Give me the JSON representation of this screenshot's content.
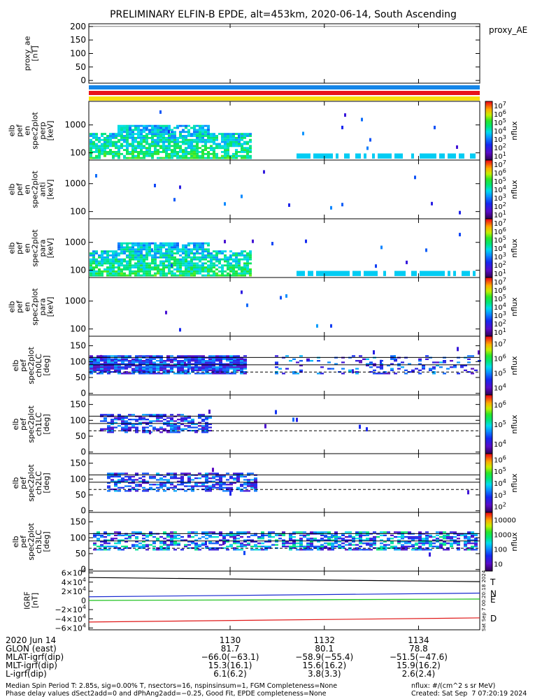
{
  "title": "PRELIMINARY ELFIN-B EPDE, alt=453km, 2020-06-14, South Ascending",
  "stamp": "Sat Sep  7 00:20:18 2024",
  "colors": {
    "bar_blue": "#1585e8",
    "bar_red": "#e8141b",
    "bar_yellow": "#f8e010",
    "comp_T": "#000000",
    "comp_N": "#1a2bd0",
    "comp_E": "#18c018",
    "comp_D": "#e01818"
  },
  "chart_data": [
    {
      "type": "line",
      "id": "proxy_ae",
      "ylabel": [
        "proxy_ae",
        "[nT]"
      ],
      "side_label": "proxy_AE",
      "ylim": [
        -10,
        210
      ],
      "yticks": [
        0,
        50,
        100,
        150,
        200
      ],
      "series": []
    },
    {
      "type": "heatmap",
      "id": "pef_en_perp",
      "ylabel": [
        "elb",
        "pef",
        "en",
        "spec2plot",
        "perp",
        "[keV]"
      ],
      "yscale": "log",
      "ylim": [
        55,
        7000
      ],
      "yticks": [
        "100",
        "1000"
      ],
      "colorbar": {
        "label": "nflux",
        "scale": "log",
        "ticks": [
          "10",
          "10",
          "10",
          "10",
          "10",
          "10",
          "10"
        ],
        "exps": [
          "1",
          "2",
          "3",
          "4",
          "5",
          "6",
          "7"
        ]
      }
    },
    {
      "type": "heatmap",
      "id": "pef_en_anti",
      "ylabel": [
        "elb",
        "pef",
        "en",
        "spec2plot",
        "anti",
        "[keV]"
      ],
      "yscale": "log",
      "ylim": [
        55,
        7000
      ],
      "yticks": [
        "100",
        "1000"
      ],
      "colorbar": {
        "label": "nflux",
        "scale": "log",
        "ticks": [
          "10",
          "10",
          "10",
          "10",
          "10",
          "10",
          "10"
        ],
        "exps": [
          "1",
          "2",
          "3",
          "4",
          "5",
          "6",
          "7"
        ]
      }
    },
    {
      "type": "heatmap",
      "id": "pef_en_para",
      "ylabel": [
        "elb",
        "pef",
        "en",
        "spec2plot",
        "para",
        "[keV]"
      ],
      "yscale": "log",
      "ylim": [
        55,
        7000
      ],
      "yticks": [
        "100",
        "1000"
      ],
      "colorbar": {
        "label": "nflux",
        "scale": "log",
        "ticks": [
          "10",
          "10",
          "10",
          "10",
          "10",
          "10",
          "10"
        ],
        "exps": [
          "1",
          "2",
          "3",
          "4",
          "5",
          "6",
          "7"
        ]
      }
    },
    {
      "type": "heatmap",
      "id": "pef_en_perp2",
      "ylabel": [
        "elb",
        "pef",
        "en",
        "spec2plot",
        "para",
        "[keV]"
      ],
      "yscale": "log",
      "ylim": [
        55,
        7000
      ],
      "yticks": [
        "100",
        "1000"
      ],
      "colorbar": {
        "label": "nflux",
        "scale": "log",
        "ticks": [
          "10",
          "10",
          "10",
          "10",
          "10",
          "10",
          "10"
        ],
        "exps": [
          "1",
          "2",
          "3",
          "4",
          "5",
          "6",
          "7"
        ]
      }
    },
    {
      "type": "heatmap",
      "id": "ch0LC",
      "ylabel": [
        "elb",
        "pef",
        "spec2plot",
        "ch0LC",
        "[deg]"
      ],
      "ylim": [
        -5,
        180
      ],
      "yticks": [
        0,
        50,
        100,
        150
      ],
      "ref_lines": [
        113,
        90
      ],
      "dashed": [
        67
      ],
      "colorbar": {
        "label": "nflux",
        "scale": "log",
        "ticks": [
          "10",
          "10",
          "10",
          "10"
        ],
        "exps": [
          "4",
          "5",
          "6",
          "7"
        ]
      }
    },
    {
      "type": "heatmap",
      "id": "ch1LC",
      "ylabel": [
        "elb",
        "pef",
        "spec2plot",
        "ch1LC",
        "[deg]"
      ],
      "ylim": [
        -5,
        180
      ],
      "yticks": [
        0,
        50,
        100,
        150
      ],
      "ref_lines": [
        113,
        90
      ],
      "dashed": [
        67
      ],
      "colorbar": {
        "label": "nflux",
        "scale": "log",
        "ticks": [
          "10",
          "10",
          "10"
        ],
        "exps": [
          "4",
          "5",
          "6"
        ]
      }
    },
    {
      "type": "heatmap",
      "id": "ch2LC",
      "ylabel": [
        "elb",
        "pef",
        "spec2plot",
        "ch2LC",
        "[deg]"
      ],
      "ylim": [
        -5,
        180
      ],
      "yticks": [
        0,
        50,
        100,
        150
      ],
      "ref_lines": [
        113,
        90
      ],
      "dashed": [
        67
      ],
      "colorbar": {
        "label": "nflux",
        "scale": "log",
        "ticks": [
          "10",
          "10",
          "10",
          "10",
          "10"
        ],
        "exps": [
          "2",
          "3",
          "4",
          "5",
          "6"
        ]
      }
    },
    {
      "type": "heatmap",
      "id": "ch3LC",
      "ylabel": [
        "elb",
        "pef",
        "spec2plot",
        "ch3LC",
        "[deg]"
      ],
      "ylim": [
        -5,
        180
      ],
      "yticks": [
        0,
        50,
        100,
        150
      ],
      "ref_lines": [
        113,
        90
      ],
      "dashed": [
        67
      ],
      "colorbar": {
        "label": "nflux",
        "scale": "log",
        "ticks": [
          "10",
          "100",
          "1000",
          "10000"
        ],
        "exps": [
          "",
          "",
          "",
          ""
        ]
      }
    },
    {
      "type": "line",
      "id": "igrf",
      "ylabel": [
        "IGRF",
        "[nT]"
      ],
      "ylim": [
        -64000,
        64000
      ],
      "yticks": [
        {
          "v": 60000,
          "m": "6",
          "e": "4",
          "sign": ""
        },
        {
          "v": 40000,
          "m": "4",
          "e": "4",
          "sign": ""
        },
        {
          "v": 20000,
          "m": "2",
          "e": "4",
          "sign": ""
        },
        {
          "v": 0,
          "m": "0",
          "e": "",
          "sign": ""
        },
        {
          "v": -20000,
          "m": "2",
          "e": "4",
          "sign": "−"
        },
        {
          "v": -40000,
          "m": "4",
          "e": "4",
          "sign": "−"
        },
        {
          "v": -60000,
          "m": "6",
          "e": "4",
          "sign": "−"
        }
      ],
      "series": [
        {
          "name": "T",
          "color": "#000000",
          "x": [
            1127.0,
            1135.3
          ],
          "y": [
            50000,
            41000
          ]
        },
        {
          "name": "N",
          "color": "#1a2bd0",
          "x": [
            1127.0,
            1135.3
          ],
          "y": [
            8000,
            16000
          ]
        },
        {
          "name": "E",
          "color": "#18c018",
          "x": [
            1127.0,
            1135.3
          ],
          "y": [
            0,
            3000
          ]
        },
        {
          "name": "D",
          "color": "#e01818",
          "x": [
            1127.0,
            1135.3
          ],
          "y": [
            -47000,
            -38000
          ]
        }
      ]
    }
  ],
  "xaxis": {
    "range": [
      1127.0,
      1135.3
    ],
    "ticks": [
      1130,
      1132,
      1134
    ],
    "date": "2020 Jun 14"
  },
  "ephemeris": {
    "labels": [
      "2020 Jun 14",
      "GLON (east)",
      "MLAT-igrf(dip)",
      "MLT-igrf(dip)",
      "L-igrf(dip)"
    ],
    "columns": [
      {
        "values": [
          "1130",
          "81.7",
          "−66.0(−63.1)",
          "15.3(16.1)",
          "6.1(6.2)"
        ]
      },
      {
        "values": [
          "1132",
          "80.1",
          "−58.9(−55.4)",
          "15.6(16.2)",
          "3.8(3.3)"
        ]
      },
      {
        "values": [
          "1134",
          "78.8",
          "−51.5(−47.6)",
          "15.9(16.2)",
          "2.6(2.4)"
        ]
      }
    ]
  },
  "footer": {
    "line1": "Median Spin Period T: 2.85s, sig=0.00% T, nsectors=16, nspinsinsum=1, FGM Completeness=None",
    "line2": "Phase delay values dSect2add=0 and dPhAng2add=−0.25, Good Fit, EPDE completeness=None",
    "units": "nflux: #/(cm^2 s sr MeV)",
    "created": "Created: Sat Sep  7 07:20:19 2024"
  }
}
